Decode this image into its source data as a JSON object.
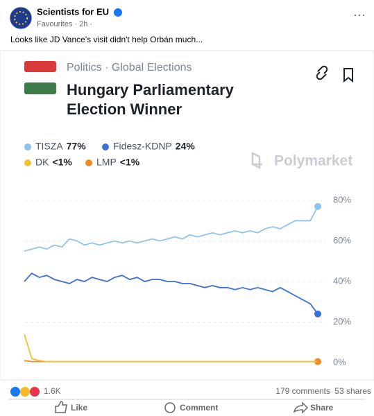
{
  "post": {
    "author": "Scientists for EU",
    "meta": "Favourites · 2h ·",
    "text": "Looks like JD Vance's visit didn't help Orbán much...",
    "reactions": "1.6K",
    "comments": "179 comments",
    "shares": "53 shares",
    "actions": [
      "Like",
      "Comment",
      "Share"
    ]
  },
  "chart_data": {
    "type": "line",
    "category": "Politics · Global Elections",
    "title": "Hungary Parliamentary Election Winner",
    "brand": "Polymarket",
    "ylim": [
      0,
      80
    ],
    "yticks": [
      {
        "value": 0,
        "label": "0%"
      },
      {
        "value": 20,
        "label": "20%"
      },
      {
        "value": 40,
        "label": "40%"
      },
      {
        "value": 60,
        "label": "60%"
      },
      {
        "value": 80,
        "label": "80%"
      }
    ],
    "grid": true,
    "series": [
      {
        "name": "TISZA",
        "share": "77%",
        "color": "#8fc3ec",
        "values": [
          55,
          56,
          57,
          56,
          58,
          57,
          61,
          60,
          58,
          59,
          58,
          59,
          60,
          59,
          60,
          59,
          60,
          61,
          60,
          61,
          62,
          61,
          63,
          62,
          63,
          64,
          63,
          64,
          65,
          64,
          65,
          64,
          66,
          67,
          66,
          68,
          70,
          70,
          70,
          77
        ]
      },
      {
        "name": "Fidesz-KDNP",
        "share": "24%",
        "color": "#3a6fd8",
        "values": [
          40,
          44,
          42,
          43,
          41,
          40,
          39,
          41,
          40,
          42,
          41,
          40,
          42,
          43,
          41,
          42,
          40,
          41,
          41,
          40,
          40,
          39,
          39,
          38,
          37,
          38,
          37,
          37,
          36,
          37,
          36,
          37,
          36,
          35,
          37,
          35,
          33,
          31,
          29,
          24
        ]
      },
      {
        "name": "DK",
        "share": "<1%",
        "color": "#f2c12e",
        "values": [
          14,
          2,
          1,
          0.5,
          0.5,
          0.5,
          0.5,
          0.5,
          0.5,
          0.5,
          0.5,
          0.5,
          0.5,
          0.5,
          0.5,
          0.5,
          0.5,
          0.5,
          0.5,
          0.5,
          0.5,
          0.5,
          0.5,
          0.5,
          0.5,
          0.5,
          0.5,
          0.5,
          0.5,
          0.5,
          0.5,
          0.5,
          0.5,
          0.5,
          0.5,
          0.5,
          0.5,
          0.5,
          0.5,
          0.5
        ]
      },
      {
        "name": "LMP",
        "share": "<1%",
        "color": "#f08a24",
        "values": [
          1,
          0.5,
          0.5,
          0.5,
          0.5,
          0.5,
          0.5,
          0.5,
          0.5,
          0.5,
          0.5,
          0.5,
          0.5,
          0.5,
          0.5,
          0.5,
          0.5,
          0.5,
          0.5,
          0.5,
          0.5,
          0.5,
          0.5,
          0.5,
          0.5,
          0.5,
          0.5,
          0.5,
          0.5,
          0.5,
          0.5,
          0.5,
          0.5,
          0.5,
          0.5,
          0.5,
          0.5,
          0.5,
          0.5,
          0.5
        ]
      }
    ]
  }
}
